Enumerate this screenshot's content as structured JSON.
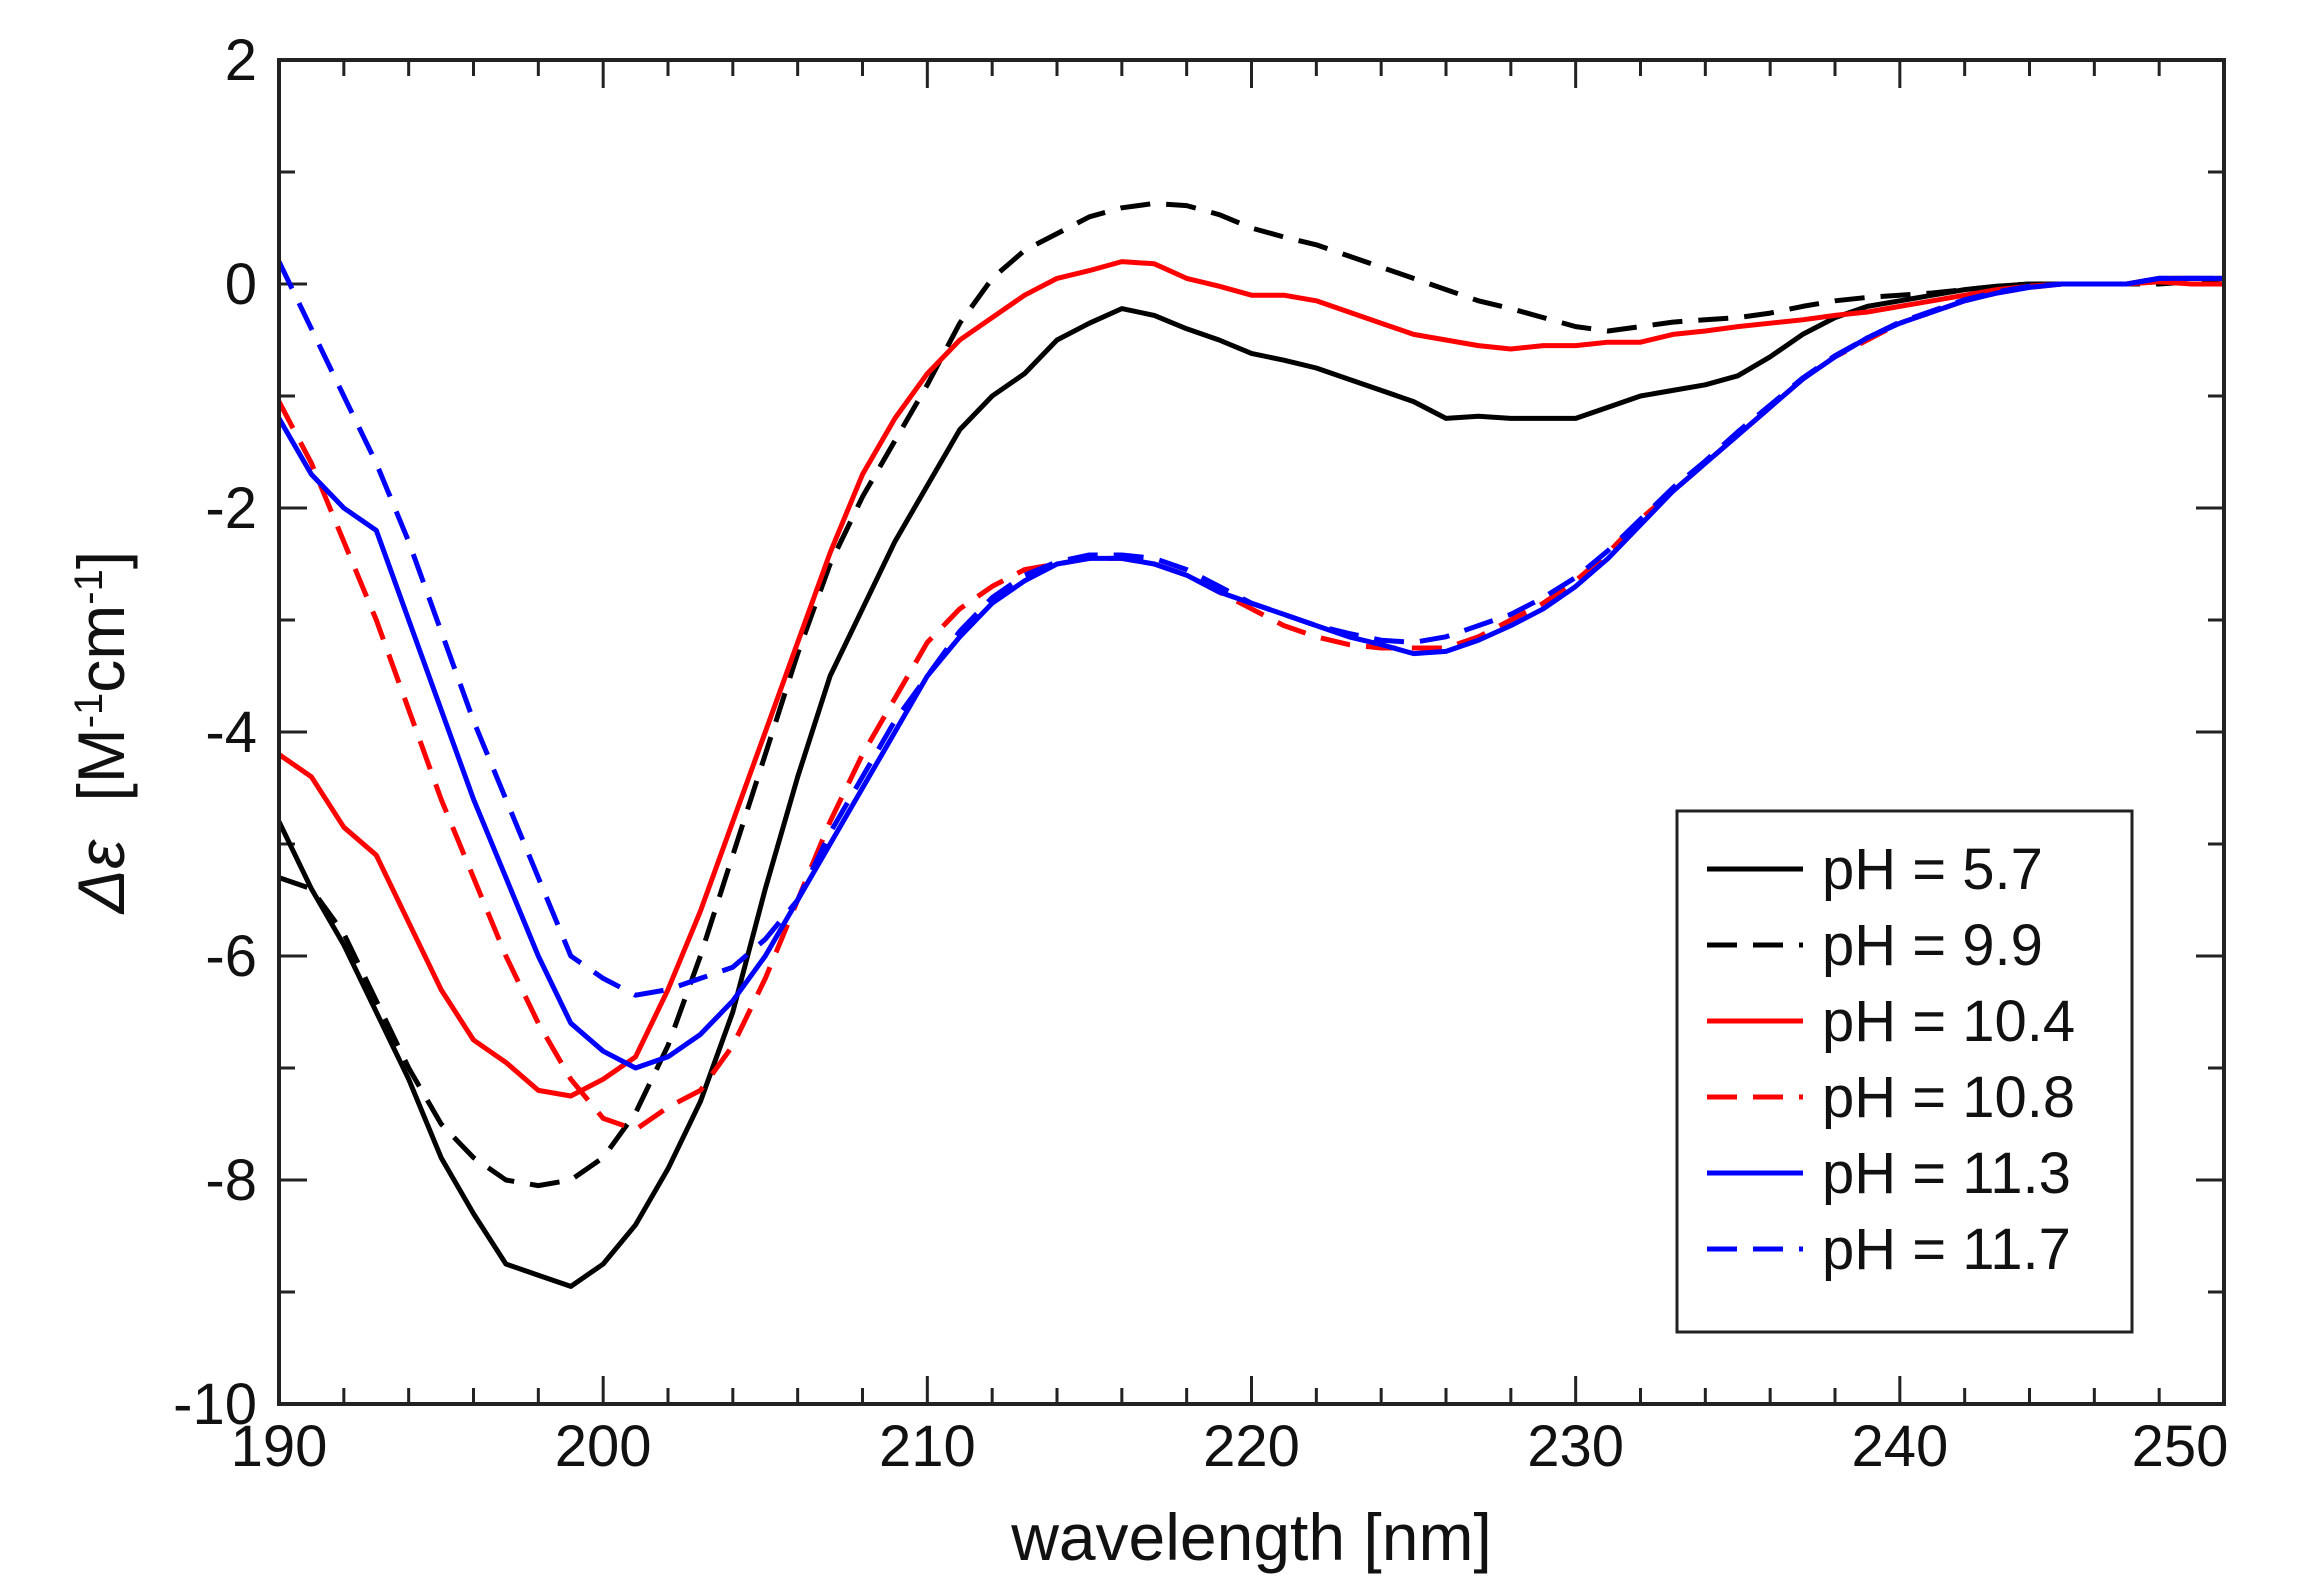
{
  "chart_data": {
    "type": "line",
    "xlabel": "wavelength [nm]",
    "ylabel": {
      "symbol": "Δε",
      "unit_open": "[M",
      "sup1": "-1",
      "unit_mid": "cm",
      "sup2": "-1",
      "unit_close": "]"
    },
    "xlim": [
      190,
      250
    ],
    "ylim": [
      -10,
      2
    ],
    "x_ticks": [
      "190",
      "200",
      "210",
      "220",
      "230",
      "240",
      "250"
    ],
    "y_ticks": [
      "2",
      "0",
      "-2",
      "-4",
      "-6",
      "-8",
      "-10"
    ],
    "grid": false,
    "legend_position": "bottom-right",
    "series": [
      {
        "name": "pH = 5.7",
        "color": "#000000",
        "dash": "solid",
        "x": [
          190,
          191,
          192,
          193,
          194,
          195,
          196,
          197,
          198,
          199,
          200,
          201,
          202,
          203,
          204,
          205,
          206,
          207,
          208,
          209,
          210,
          211,
          212,
          213,
          214,
          215,
          216,
          217,
          218,
          219,
          220,
          221,
          222,
          223,
          224,
          225,
          226,
          227,
          228,
          229,
          230,
          231,
          232,
          233,
          234,
          235,
          236,
          237,
          238,
          239,
          240,
          241,
          242,
          243,
          244,
          245,
          246,
          247,
          248,
          249,
          250
        ],
        "y": [
          -4.8,
          -5.4,
          -5.9,
          -6.5,
          -7.1,
          -7.8,
          -8.3,
          -8.75,
          -8.85,
          -8.95,
          -8.75,
          -8.4,
          -7.9,
          -7.3,
          -6.5,
          -5.4,
          -4.4,
          -3.5,
          -2.9,
          -2.3,
          -1.8,
          -1.3,
          -1.0,
          -0.8,
          -0.5,
          -0.35,
          -0.22,
          -0.28,
          -0.4,
          -0.5,
          -0.62,
          -0.68,
          -0.75,
          -0.85,
          -0.95,
          -1.05,
          -1.2,
          -1.18,
          -1.2,
          -1.2,
          -1.2,
          -1.1,
          -1.0,
          -0.95,
          -0.9,
          -0.82,
          -0.65,
          -0.45,
          -0.3,
          -0.2,
          -0.15,
          -0.1,
          -0.05,
          -0.02,
          0.0,
          0.0,
          0.0,
          0.0,
          0.05,
          0.05,
          0.05
        ]
      },
      {
        "name": "pH = 9.9",
        "color": "#000000",
        "dash": "dashed",
        "x": [
          190,
          191,
          192,
          193,
          194,
          195,
          196,
          197,
          198,
          199,
          200,
          201,
          202,
          203,
          204,
          205,
          206,
          207,
          208,
          209,
          210,
          211,
          212,
          213,
          214,
          215,
          216,
          217,
          218,
          219,
          220,
          221,
          222,
          223,
          224,
          225,
          226,
          227,
          228,
          229,
          230,
          231,
          232,
          233,
          234,
          235,
          236,
          237,
          238,
          239,
          240,
          241,
          242,
          243,
          244,
          245,
          246,
          247,
          248,
          249,
          250
        ],
        "y": [
          -5.3,
          -5.4,
          -5.8,
          -6.4,
          -7.0,
          -7.5,
          -7.8,
          -8.0,
          -8.05,
          -8.0,
          -7.8,
          -7.4,
          -6.8,
          -6.0,
          -5.1,
          -4.2,
          -3.3,
          -2.5,
          -1.9,
          -1.4,
          -0.9,
          -0.35,
          0.05,
          0.3,
          0.45,
          0.6,
          0.68,
          0.72,
          0.7,
          0.62,
          0.5,
          0.42,
          0.35,
          0.25,
          0.15,
          0.05,
          -0.05,
          -0.15,
          -0.22,
          -0.3,
          -0.38,
          -0.42,
          -0.38,
          -0.34,
          -0.32,
          -0.3,
          -0.26,
          -0.2,
          -0.15,
          -0.12,
          -0.1,
          -0.08,
          -0.05,
          -0.02,
          0.0,
          0.0,
          0.0,
          0.0,
          0.0,
          0.02,
          0.05
        ]
      },
      {
        "name": "pH = 10.4",
        "color": "#ff0000",
        "dash": "solid",
        "x": [
          190,
          191,
          192,
          193,
          194,
          195,
          196,
          197,
          198,
          199,
          200,
          201,
          202,
          203,
          204,
          205,
          206,
          207,
          208,
          209,
          210,
          211,
          212,
          213,
          214,
          215,
          216,
          217,
          218,
          219,
          220,
          221,
          222,
          223,
          224,
          225,
          226,
          227,
          228,
          229,
          230,
          231,
          232,
          233,
          234,
          235,
          236,
          237,
          238,
          239,
          240,
          241,
          242,
          243,
          244,
          245,
          246,
          247,
          248,
          249,
          250
        ],
        "y": [
          -4.2,
          -4.4,
          -4.85,
          -5.1,
          -5.7,
          -6.3,
          -6.75,
          -6.95,
          -7.2,
          -7.25,
          -7.1,
          -6.9,
          -6.3,
          -5.6,
          -4.8,
          -4.0,
          -3.2,
          -2.4,
          -1.7,
          -1.2,
          -0.8,
          -0.5,
          -0.3,
          -0.1,
          0.05,
          0.12,
          0.2,
          0.18,
          0.05,
          -0.02,
          -0.1,
          -0.1,
          -0.15,
          -0.25,
          -0.35,
          -0.45,
          -0.5,
          -0.55,
          -0.58,
          -0.55,
          -0.55,
          -0.52,
          -0.52,
          -0.45,
          -0.42,
          -0.38,
          -0.35,
          -0.32,
          -0.28,
          -0.25,
          -0.2,
          -0.15,
          -0.1,
          -0.05,
          -0.02,
          0.0,
          0.0,
          0.0,
          0.02,
          0.0,
          0.0
        ]
      },
      {
        "name": "pH = 10.8",
        "color": "#ff0000",
        "dash": "dashed",
        "x": [
          190,
          191,
          192,
          193,
          194,
          195,
          196,
          197,
          198,
          199,
          200,
          201,
          202,
          203,
          204,
          205,
          206,
          207,
          208,
          209,
          210,
          211,
          212,
          213,
          214,
          215,
          216,
          217,
          218,
          219,
          220,
          221,
          222,
          223,
          224,
          225,
          226,
          227,
          228,
          229,
          230,
          231,
          232,
          233,
          234,
          235,
          236,
          237,
          238,
          239,
          240,
          241,
          242,
          243,
          244,
          245,
          246,
          247,
          248,
          249,
          250
        ],
        "y": [
          -1.05,
          -1.6,
          -2.3,
          -3.0,
          -3.8,
          -4.6,
          -5.3,
          -6.0,
          -6.6,
          -7.1,
          -7.45,
          -7.55,
          -7.35,
          -7.2,
          -6.8,
          -6.2,
          -5.5,
          -4.8,
          -4.2,
          -3.7,
          -3.2,
          -2.9,
          -2.7,
          -2.55,
          -2.5,
          -2.45,
          -2.45,
          -2.5,
          -2.6,
          -2.75,
          -2.9,
          -3.05,
          -3.15,
          -3.22,
          -3.25,
          -3.25,
          -3.25,
          -3.15,
          -3.0,
          -2.85,
          -2.65,
          -2.4,
          -2.1,
          -1.85,
          -1.6,
          -1.35,
          -1.1,
          -0.85,
          -0.65,
          -0.5,
          -0.35,
          -0.25,
          -0.15,
          -0.08,
          -0.03,
          0.0,
          0.0,
          0.0,
          0.05,
          0.05,
          0.05
        ]
      },
      {
        "name": "pH = 11.3",
        "color": "#0000ff",
        "dash": "solid",
        "x": [
          190,
          191,
          192,
          193,
          194,
          195,
          196,
          197,
          198,
          199,
          200,
          201,
          202,
          203,
          204,
          205,
          206,
          207,
          208,
          209,
          210,
          211,
          212,
          213,
          214,
          215,
          216,
          217,
          218,
          219,
          220,
          221,
          222,
          223,
          224,
          225,
          226,
          227,
          228,
          229,
          230,
          231,
          232,
          233,
          234,
          235,
          236,
          237,
          238,
          239,
          240,
          241,
          242,
          243,
          244,
          245,
          246,
          247,
          248,
          249,
          250
        ],
        "y": [
          -1.2,
          -1.7,
          -2.0,
          -2.2,
          -3.0,
          -3.8,
          -4.6,
          -5.3,
          -6.0,
          -6.6,
          -6.85,
          -7.0,
          -6.9,
          -6.7,
          -6.4,
          -6.0,
          -5.5,
          -5.0,
          -4.5,
          -4.0,
          -3.5,
          -3.15,
          -2.85,
          -2.65,
          -2.5,
          -2.45,
          -2.45,
          -2.5,
          -2.6,
          -2.75,
          -2.85,
          -2.95,
          -3.05,
          -3.15,
          -3.22,
          -3.3,
          -3.28,
          -3.18,
          -3.05,
          -2.9,
          -2.7,
          -2.45,
          -2.15,
          -1.85,
          -1.6,
          -1.35,
          -1.1,
          -0.85,
          -0.65,
          -0.48,
          -0.35,
          -0.25,
          -0.15,
          -0.08,
          -0.03,
          0.0,
          0.0,
          0.0,
          0.05,
          0.05,
          0.05
        ]
      },
      {
        "name": "pH = 11.7",
        "color": "#0000ff",
        "dash": "dashed",
        "x": [
          190,
          191,
          192,
          193,
          194,
          195,
          196,
          197,
          198,
          199,
          200,
          201,
          202,
          203,
          204,
          205,
          206,
          207,
          208,
          209,
          210,
          211,
          212,
          213,
          214,
          215,
          216,
          217,
          218,
          219,
          220,
          221,
          222,
          223,
          224,
          225,
          226,
          227,
          228,
          229,
          230,
          231,
          232,
          233,
          234,
          235,
          236,
          237,
          238,
          239,
          240,
          241,
          242,
          243,
          244,
          245,
          246,
          247,
          248,
          249,
          250
        ],
        "y": [
          0.2,
          -0.4,
          -1.0,
          -1.6,
          -2.3,
          -3.1,
          -3.9,
          -4.6,
          -5.3,
          -6.0,
          -6.2,
          -6.35,
          -6.3,
          -6.2,
          -6.1,
          -5.85,
          -5.5,
          -4.9,
          -4.4,
          -3.9,
          -3.5,
          -3.1,
          -2.8,
          -2.6,
          -2.48,
          -2.42,
          -2.42,
          -2.45,
          -2.55,
          -2.7,
          -2.85,
          -2.95,
          -3.05,
          -3.12,
          -3.18,
          -3.2,
          -3.15,
          -3.05,
          -2.95,
          -2.8,
          -2.62,
          -2.38,
          -2.1,
          -1.82,
          -1.58,
          -1.32,
          -1.08,
          -0.84,
          -0.64,
          -0.48,
          -0.34,
          -0.24,
          -0.14,
          -0.07,
          -0.02,
          0.0,
          0.0,
          0.0,
          0.05,
          0.05,
          0.05
        ]
      }
    ]
  }
}
